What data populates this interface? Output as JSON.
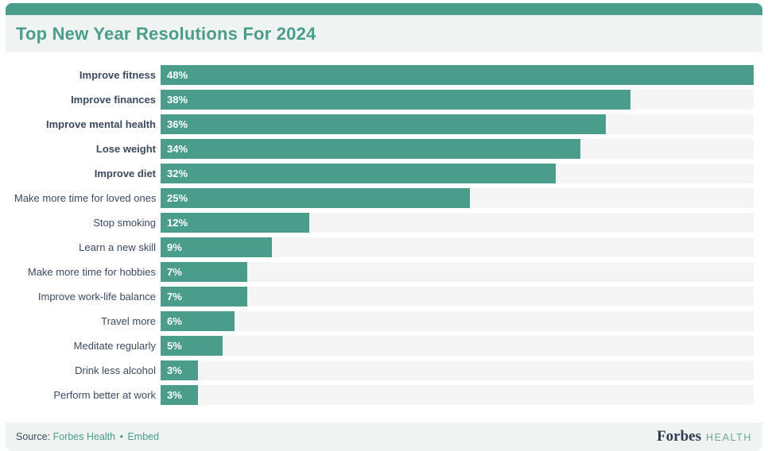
{
  "colors": {
    "accent": "#4a9d8b",
    "panel_bg": "#eff4f2",
    "track_bg": "#f5f5f5",
    "label_text": "#3b4a5f",
    "bar_value_text": "#ffffff",
    "forbes_navy": "#2e3c4f",
    "health_teal": "#6ba695"
  },
  "chart_data": {
    "type": "bar",
    "orientation": "horizontal",
    "title": "Top New Year Resolutions For 2024",
    "categories": [
      "Improve fitness",
      "Improve finances",
      "Improve mental health",
      "Lose weight",
      "Improve diet",
      "Make more time for loved ones",
      "Stop smoking",
      "Learn a new skill",
      "Make more time for hobbies",
      "Improve work-life balance",
      "Travel more",
      "Meditate regularly",
      "Drink less alcohol",
      "Perform better at work"
    ],
    "values": [
      48,
      38,
      36,
      34,
      32,
      25,
      12,
      9,
      7,
      7,
      6,
      5,
      3,
      3
    ],
    "value_labels": [
      "48%",
      "38%",
      "36%",
      "34%",
      "32%",
      "25%",
      "12%",
      "9%",
      "7%",
      "7%",
      "6%",
      "5%",
      "3%",
      "3%"
    ],
    "bold_label_count": 5,
    "xlim": [
      0,
      48
    ],
    "grid": false,
    "legend": false
  },
  "footer": {
    "source_prefix": "Source:",
    "source_link": "Forbes Health",
    "separator": "•",
    "embed_link": "Embed",
    "brand_forbes": "Forbes",
    "brand_health": "HEALTH"
  }
}
